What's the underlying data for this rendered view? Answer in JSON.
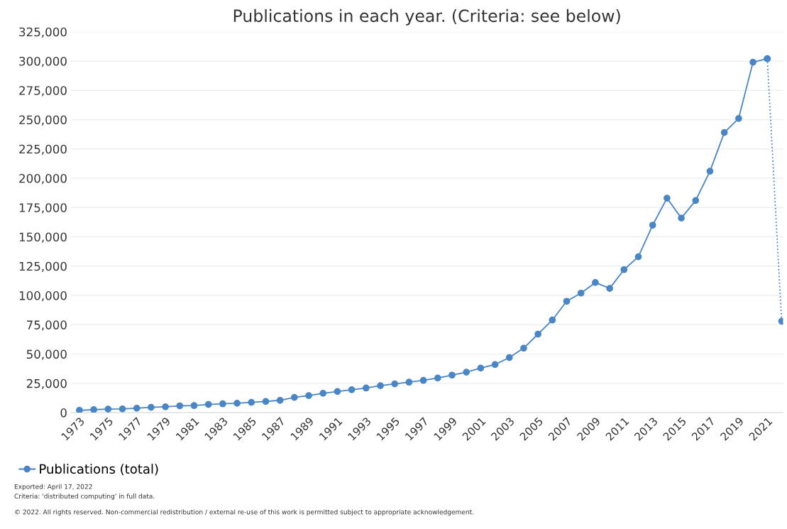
{
  "chart_data": {
    "type": "line",
    "title": "Publications in each year. (Criteria: see below)",
    "categories": [
      "1973",
      null,
      "1975",
      null,
      "1977",
      null,
      "1979",
      null,
      "1981",
      null,
      "1983",
      null,
      "1985",
      null,
      "1987",
      null,
      "1989",
      null,
      "1991",
      null,
      "1993",
      null,
      "1995",
      null,
      "1997",
      null,
      "1999",
      null,
      "2001",
      null,
      "2003",
      null,
      "2005",
      null,
      "2007",
      null,
      "2009",
      null,
      "2011",
      null,
      "2013",
      null,
      "2015",
      null,
      "2017",
      null,
      "2019",
      null,
      "2021",
      null
    ],
    "series": [
      {
        "name": "Publications (total)",
        "color": "#4a86c5",
        "line_style": "solid",
        "values": [
          2000,
          2500,
          3000,
          3200,
          3800,
          4500,
          5000,
          5800,
          6000,
          7000,
          7500,
          8000,
          8800,
          9500,
          10500,
          13000,
          14500,
          16500,
          18000,
          19500,
          21000,
          23000,
          24500,
          26000,
          27500,
          29500,
          32000,
          34500,
          38000,
          41000,
          47000,
          55000,
          67000,
          79000,
          95000,
          102000,
          111000,
          106000,
          122000,
          133000,
          160000,
          183000,
          166000,
          181000,
          206000,
          239000,
          251000,
          299000,
          302000,
          null
        ]
      },
      {
        "color": "#4a86c5",
        "line_style": "dotted",
        "values": [
          null,
          null,
          null,
          null,
          null,
          null,
          null,
          null,
          null,
          null,
          null,
          null,
          null,
          null,
          null,
          null,
          null,
          null,
          null,
          null,
          null,
          null,
          null,
          null,
          null,
          null,
          null,
          null,
          null,
          null,
          null,
          null,
          null,
          null,
          null,
          null,
          null,
          null,
          null,
          null,
          null,
          null,
          null,
          null,
          null,
          null,
          null,
          null,
          302000,
          78000
        ]
      }
    ],
    "ylim": [
      0,
      325000
    ],
    "yticks": [
      {
        "value": 0,
        "label": "0"
      },
      {
        "value": 25000,
        "label": "25,000"
      },
      {
        "value": 50000,
        "label": "50,000"
      },
      {
        "value": 75000,
        "label": "75,000"
      },
      {
        "value": 100000,
        "label": "100,000"
      },
      {
        "value": 125000,
        "label": "125,000"
      },
      {
        "value": 150000,
        "label": "150,000"
      },
      {
        "value": 175000,
        "label": "175,000"
      },
      {
        "value": 200000,
        "label": "200,000"
      },
      {
        "value": 225000,
        "label": "225,000"
      },
      {
        "value": 250000,
        "label": "250,000"
      },
      {
        "value": 275000,
        "label": "275,000"
      },
      {
        "value": 300000,
        "label": "300,000"
      },
      {
        "value": 325000,
        "label": "325,000"
      }
    ],
    "grid": "y",
    "legend": "bottom left",
    "marker": "circle",
    "annotations": [
      "Exported: April 17, 2022",
      "Criteria: 'distributed computing' in full data.",
      "© 2022. All rights reserved. Non-commercial redistribution / external re-use of this work is permitted subject to appropriate acknowledgement."
    ]
  }
}
